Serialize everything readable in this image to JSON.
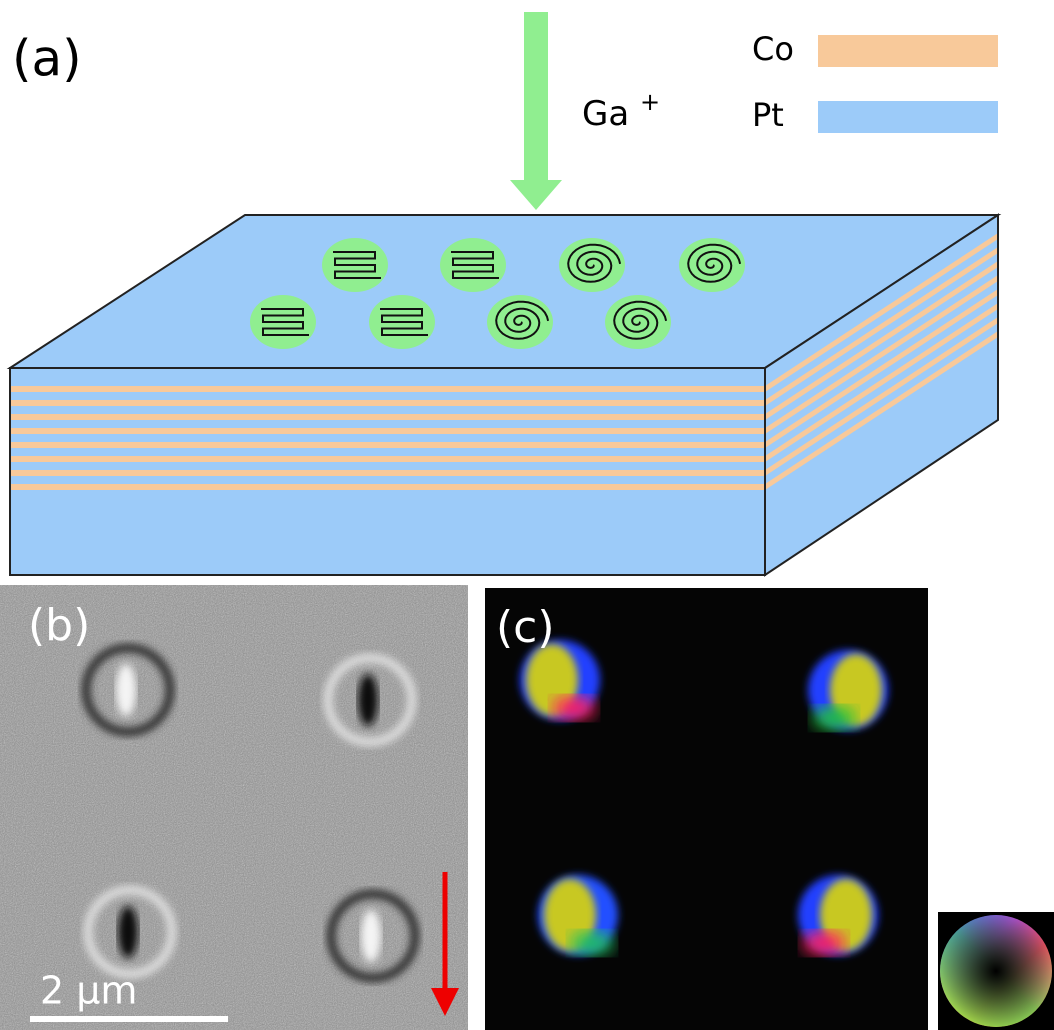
{
  "panel_a": {
    "label": "(a)",
    "ion": "Ga",
    "ion_charge": "+",
    "legend": [
      {
        "name": "Co",
        "color": "#f8c99a"
      },
      {
        "name": "Pt",
        "color": "#9ccbf9"
      }
    ]
  },
  "panel_b": {
    "label": "(b)",
    "scale_bar": "2 μm"
  },
  "panel_c": {
    "label": "(c)"
  }
}
